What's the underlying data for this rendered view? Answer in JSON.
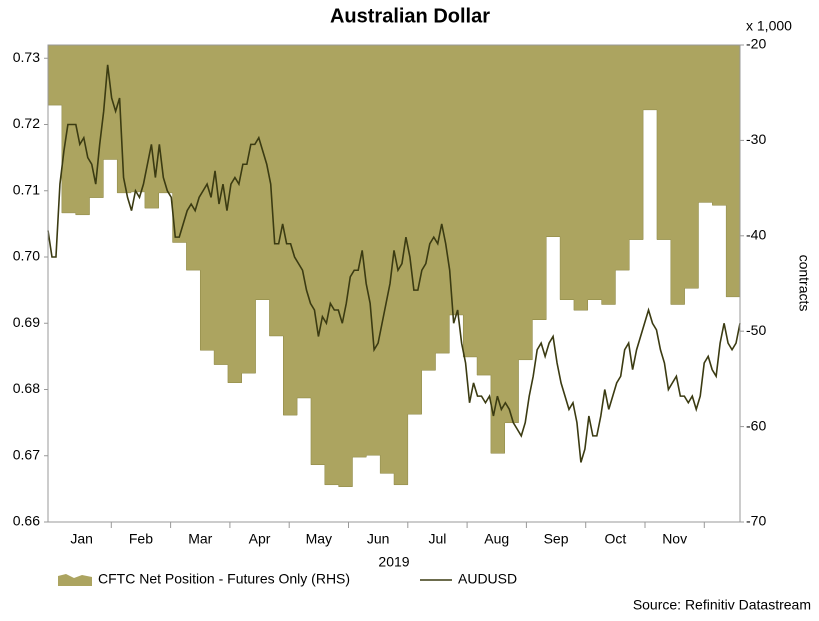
{
  "chart_data": {
    "type": "line",
    "title": "Australian Dollar",
    "xlabel": "2019",
    "months": [
      "Jan",
      "Feb",
      "Mar",
      "Apr",
      "May",
      "Jun",
      "Jul",
      "Aug",
      "Sep",
      "Oct",
      "Nov"
    ],
    "ylim": [
      0.66,
      0.732
    ],
    "yticks": [
      0.66,
      0.67,
      0.68,
      0.69,
      {
        "value": 0.7,
        "label": "0.70"
      },
      0.71,
      0.72,
      0.73
    ],
    "y2lim": [
      -70,
      -20
    ],
    "y2ticks": [
      -70,
      -60,
      -50,
      -40,
      -30,
      -20
    ],
    "y2label": "contracts",
    "y2unit": "x 1,000",
    "source": "Source: Refinitiv Datastream",
    "series": [
      {
        "name": "CFTC Net Position - Futures Only (RHS)",
        "type": "area",
        "axis": "y2",
        "color": "#aca460",
        "values": [
          -26.3,
          -37.6,
          -37.8,
          -36.0,
          -32.0,
          -35.5,
          -35.4,
          -37.1,
          -35.5,
          -40.7,
          -43.6,
          -52.0,
          -53.5,
          -55.4,
          -54.4,
          -46.7,
          -50.5,
          -58.8,
          -57.0,
          -64.0,
          -66.1,
          -66.3,
          -63.2,
          -63.0,
          -64.9,
          -66.1,
          -58.7,
          -54.1,
          -52.3,
          -48.3,
          -52.7,
          -54.6,
          -62.8,
          -59.6,
          -53.0,
          -48.8,
          -40.1,
          -46.7,
          -47.8,
          -46.7,
          -47.2,
          -43.6,
          -40.4,
          -26.8,
          -40.4,
          -47.2,
          -45.5,
          -36.5,
          -36.8,
          -46.4
        ]
      },
      {
        "name": "AUDUSD",
        "type": "line",
        "color": "#3b3b12",
        "values": [
          0.704,
          0.7,
          0.7,
          0.711,
          0.716,
          0.72,
          0.72,
          0.72,
          0.717,
          0.718,
          0.715,
          0.714,
          0.711,
          0.717,
          0.722,
          0.729,
          0.724,
          0.722,
          0.724,
          0.712,
          0.709,
          0.707,
          0.71,
          0.709,
          0.711,
          0.714,
          0.717,
          0.712,
          0.717,
          0.712,
          0.71,
          0.709,
          0.703,
          0.703,
          0.705,
          0.707,
          0.708,
          0.707,
          0.709,
          0.71,
          0.711,
          0.709,
          0.713,
          0.708,
          0.711,
          0.707,
          0.711,
          0.712,
          0.711,
          0.714,
          0.714,
          0.717,
          0.717,
          0.718,
          0.716,
          0.714,
          0.711,
          0.702,
          0.702,
          0.705,
          0.702,
          0.702,
          0.7,
          0.699,
          0.698,
          0.695,
          0.693,
          0.692,
          0.688,
          0.691,
          0.69,
          0.693,
          0.692,
          0.692,
          0.69,
          0.693,
          0.697,
          0.698,
          0.698,
          0.701,
          0.696,
          0.693,
          0.686,
          0.687,
          0.69,
          0.693,
          0.696,
          0.701,
          0.698,
          0.699,
          0.703,
          0.7,
          0.695,
          0.695,
          0.698,
          0.699,
          0.702,
          0.703,
          0.702,
          0.705,
          0.702,
          0.698,
          0.69,
          0.692,
          0.687,
          0.684,
          0.678,
          0.681,
          0.679,
          0.679,
          0.678,
          0.679,
          0.676,
          0.679,
          0.677,
          0.678,
          0.677,
          0.675,
          0.674,
          0.673,
          0.675,
          0.679,
          0.682,
          0.686,
          0.687,
          0.685,
          0.687,
          0.688,
          0.684,
          0.681,
          0.679,
          0.677,
          0.678,
          0.675,
          0.669,
          0.671,
          0.676,
          0.673,
          0.673,
          0.676,
          0.68,
          0.677,
          0.679,
          0.681,
          0.682,
          0.686,
          0.687,
          0.683,
          0.686,
          0.688,
          0.69,
          0.692,
          0.69,
          0.689,
          0.686,
          0.684,
          0.68,
          0.681,
          0.682,
          0.679,
          0.679,
          0.678,
          0.679,
          0.677,
          0.679,
          0.684,
          0.685,
          0.683,
          0.682,
          0.687,
          0.69,
          0.687,
          0.686,
          0.687,
          0.69
        ]
      }
    ]
  }
}
